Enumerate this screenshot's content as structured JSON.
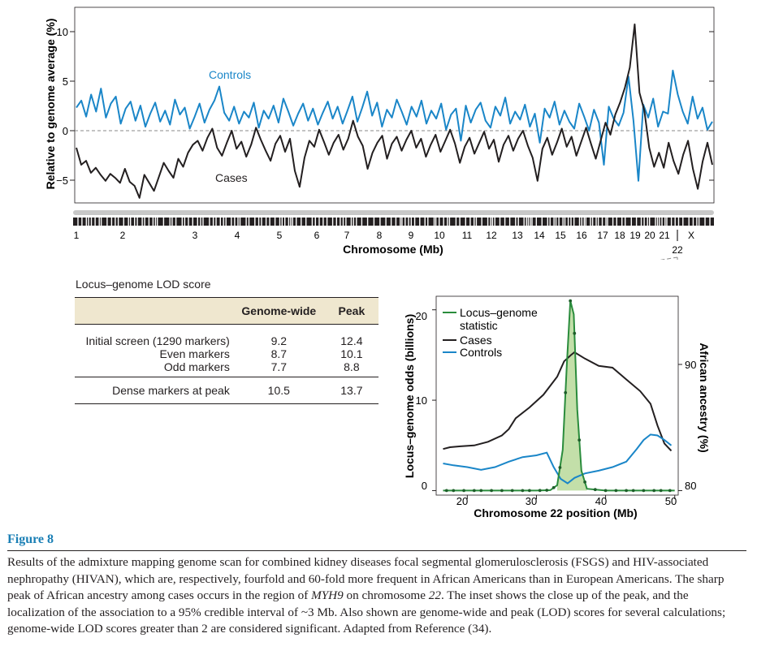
{
  "main_chart": {
    "type": "line",
    "ylabel": "Relative to genome average (%)",
    "xlabel": "Chromosome (Mb)",
    "yticks": [
      "10",
      "5",
      "0",
      "−5"
    ],
    "ylim": [
      -7,
      12.5
    ],
    "chromosome_labels": [
      "1",
      "2",
      "3",
      "4",
      "5",
      "6",
      "7",
      "8",
      "9",
      "10",
      "11",
      "12",
      "13",
      "14",
      "15",
      "16",
      "17",
      "18",
      "19",
      "20",
      "21",
      "X"
    ],
    "chr22_label": "22",
    "controls_label": "Controls",
    "cases_label": "Cases",
    "series": [
      {
        "name": "Controls",
        "color": "#1a86c8",
        "values": [
          2.5,
          3.2,
          1.6,
          3.8,
          2.1,
          4.4,
          1.5,
          2.9,
          3.6,
          0.9,
          2.4,
          3.1,
          1.2,
          2.7,
          0.6,
          1.9,
          3.0,
          1.1,
          2.2,
          0.8,
          3.3,
          1.8,
          2.5,
          0.4,
          1.6,
          2.9,
          1.0,
          2.3,
          3.2,
          4.6,
          2.0,
          1.2,
          2.6,
          0.9,
          2.1,
          1.5,
          3.0,
          0.5,
          2.2,
          1.4,
          2.7,
          1.0,
          3.4,
          2.1,
          0.7,
          1.9,
          2.9,
          1.2,
          2.4,
          0.8,
          2.0,
          3.1,
          1.4,
          2.6,
          0.9,
          2.2,
          3.6,
          1.1,
          2.5,
          4.1,
          1.7,
          3.0,
          0.6,
          2.3,
          1.5,
          3.3,
          2.1,
          0.8,
          2.6,
          1.6,
          3.2,
          0.9,
          2.2,
          1.4,
          2.9,
          0.3,
          1.8,
          2.4,
          -0.8,
          2.7,
          1.0,
          2.3,
          3.0,
          1.2,
          0.5,
          2.6,
          1.7,
          3.5,
          0.9,
          2.1,
          1.3,
          2.8,
          0.6,
          1.9,
          -1.0,
          2.4,
          1.5,
          3.1,
          0.8,
          2.2,
          1.1,
          0.4,
          2.9,
          1.6,
          0.2,
          2.3,
          1.0,
          -3.2,
          2.6,
          1.4,
          0.7,
          2.0,
          5.6,
          1.2,
          -4.8,
          2.8,
          1.5,
          3.4,
          0.6,
          2.1,
          1.9,
          6.2,
          3.8,
          2.1,
          0.9,
          3.6,
          1.4,
          2.5,
          0.3,
          1.1
        ]
      },
      {
        "name": "Cases",
        "color": "#231f20",
        "values": [
          -1.5,
          -3.2,
          -2.8,
          -4.0,
          -3.5,
          -4.2,
          -4.8,
          -4.1,
          -4.5,
          -5.0,
          -3.6,
          -4.9,
          -5.3,
          -6.5,
          -4.2,
          -5.0,
          -5.8,
          -4.4,
          -3.0,
          -3.8,
          -4.5,
          -2.6,
          -3.4,
          -2.0,
          -1.2,
          -0.8,
          -1.8,
          -0.5,
          0.4,
          -1.5,
          -2.3,
          -1.0,
          0.2,
          -1.6,
          -0.9,
          -2.4,
          -1.2,
          0.5,
          -0.7,
          -1.8,
          -2.8,
          -1.1,
          -0.3,
          -1.9,
          -0.6,
          -3.8,
          -5.4,
          -2.5,
          -0.8,
          -1.4,
          0.3,
          -0.9,
          -2.2,
          -1.0,
          -0.2,
          -1.7,
          -0.6,
          1.2,
          -0.4,
          -1.3,
          -3.6,
          -2.0,
          -1.0,
          -0.3,
          -2.6,
          -1.1,
          -0.4,
          -1.8,
          -0.7,
          0.2,
          -1.5,
          -0.6,
          -2.4,
          -1.2,
          -0.2,
          -1.9,
          -0.8,
          0.3,
          -1.1,
          -3.0,
          -1.4,
          -0.5,
          -2.1,
          -1.0,
          0.1,
          -1.6,
          -0.7,
          -2.9,
          -1.2,
          -0.3,
          -1.8,
          -0.6,
          0.2,
          -1.3,
          -2.5,
          -4.8,
          -1.6,
          -0.5,
          -2.2,
          -1.0,
          0.4,
          -1.4,
          -0.4,
          -2.3,
          -0.9,
          0.5,
          -1.1,
          -2.6,
          -0.8,
          1.0,
          -0.2,
          1.8,
          3.0,
          4.5,
          6.5,
          10.8,
          4.0,
          2.2,
          -1.5,
          -3.4,
          -2.0,
          -3.5,
          -1.0,
          -2.8,
          -4.1,
          -2.2,
          -0.8,
          -3.6,
          -5.6,
          -2.9,
          -1.0,
          -3.2
        ]
      }
    ]
  },
  "lod_table": {
    "title": "Locus–genome LOD score",
    "headers": [
      "",
      "Genome-wide",
      "Peak"
    ],
    "rows": [
      {
        "label": "Initial screen (1290 markers)",
        "genome_wide": "9.2",
        "peak": "12.4"
      },
      {
        "label": "Even markers",
        "genome_wide": "8.7",
        "peak": "10.1"
      },
      {
        "label": "Odd markers",
        "genome_wide": "7.7",
        "peak": "8.8"
      }
    ],
    "dense_row": {
      "label": "Dense markers at peak",
      "genome_wide": "10.5",
      "peak": "13.7"
    }
  },
  "inset_chart": {
    "type": "line",
    "xlabel": "Chromosome 22 position (Mb)",
    "ylabel_left": "Locus–genome odds (billions)",
    "ylabel_right": "African ancestry (%)",
    "xticks": [
      "20",
      "30",
      "40",
      "50"
    ],
    "yticks_left": [
      "20",
      "10",
      "0"
    ],
    "yticks_right": [
      "90",
      "80"
    ],
    "xlim": [
      15.5,
      50.5
    ],
    "ylim_left": [
      -0.5,
      21.5
    ],
    "legend": [
      {
        "label": "Locus–genome",
        "label2": "statistic",
        "color": "#2a8c3c"
      },
      {
        "label": "Cases",
        "color": "#231f20"
      },
      {
        "label": "Controls",
        "color": "#1a86c8"
      }
    ],
    "series": [
      {
        "name": "Locus–genome statistic",
        "x": [
          16.5,
          20,
          25,
          30,
          32,
          33,
          33.8,
          34.4,
          34.9,
          35.4,
          35.9,
          36.5,
          37.3,
          40,
          45,
          50
        ],
        "y": [
          0,
          0,
          0,
          0,
          0.05,
          0.6,
          4.5,
          14,
          21,
          19.5,
          9,
          2.2,
          0.2,
          0,
          0,
          0
        ]
      },
      {
        "name": "Cases",
        "x": [
          16.5,
          17.5,
          19,
          21,
          23,
          25,
          26,
          27,
          29,
          31,
          33,
          34,
          35,
          35.5,
          37,
          39,
          41,
          43,
          45,
          46.5,
          47.5,
          48.5,
          49.5
        ],
        "y": [
          4.6,
          4.8,
          4.9,
          5.0,
          5.4,
          6.1,
          6.8,
          8.0,
          9.2,
          10.6,
          12.6,
          14.3,
          15.0,
          15.3,
          14.6,
          13.8,
          13.6,
          12.3,
          11.0,
          9.6,
          7.2,
          5.2,
          4.4
        ]
      },
      {
        "name": "Controls",
        "x": [
          16.5,
          18,
          20,
          22,
          24,
          26,
          28,
          30,
          31.5,
          32.5,
          33.5,
          34.5,
          35.5,
          37,
          39,
          41,
          43,
          44.5,
          45.5,
          46.5,
          47.5,
          48.5,
          49.5
        ],
        "y": [
          3.0,
          2.8,
          2.6,
          2.3,
          2.6,
          3.2,
          3.7,
          3.9,
          4.2,
          2.6,
          1.3,
          0.8,
          1.4,
          1.9,
          2.2,
          2.6,
          3.2,
          4.6,
          5.6,
          6.2,
          6.1,
          5.6,
          5.0
        ]
      }
    ]
  },
  "figure": {
    "label": "Figure 8",
    "caption_1": "Results of the admixture mapping genome scan for combined kidney diseases focal segmental glomerulosclerosis (FSGS) and HIV-associated nephropathy (HIVAN), which are, respectively, fourfold and 60-fold more frequent in African Americans than in European Americans. The sharp peak of African ancestry among cases occurs in the region of ",
    "caption_gene": "MYH9",
    "caption_2": " on chromosome ",
    "caption_chr": "22",
    "caption_3": ". The inset shows the close up of the peak, and the localization of the association to a 95% credible interval of ~3 Mb. Also shown are genome-wide and peak (LOD) scores for several calculations; genome-wide LOD scores greater than 2 are considered significant. Adapted from Reference (34)."
  }
}
